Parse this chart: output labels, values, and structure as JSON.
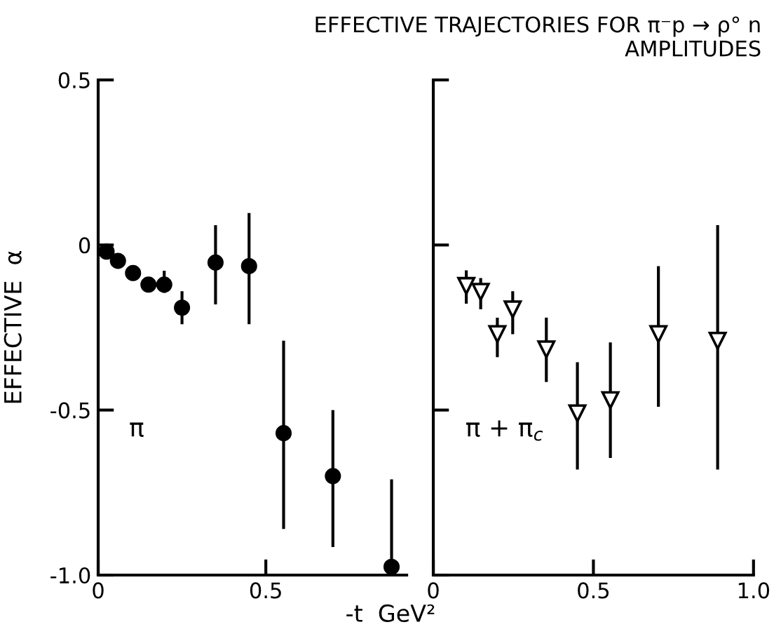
{
  "chart_data": [
    {
      "type": "scatter",
      "title": "EFFECTIVE TRAJECTORIES FOR π⁻p → ρ° n\nAMPLITUDES",
      "xlabel": "-t  GeV²",
      "ylabel": "EFFECTIVE  α",
      "annotations": [
        "π"
      ],
      "x": [
        0.025,
        0.059,
        0.104,
        0.15,
        0.197,
        0.25,
        0.35,
        0.45,
        0.553,
        0.7,
        0.875
      ],
      "series": [
        {
          "color": "#000000",
          "marker": "circle",
          "values": [
            -0.02,
            -0.048,
            -0.085,
            -0.12,
            -0.12,
            -0.19,
            -0.053,
            -0.064,
            -0.57,
            -0.7,
            -0.975
          ],
          "errors": [
            null,
            null,
            null,
            null,
            [
              -0.145,
              -0.078
            ],
            [
              -0.24,
              -0.14
            ],
            [
              -0.18,
              0.06
            ],
            [
              -0.24,
              0.097
            ],
            [
              -0.86,
              -0.29
            ],
            [
              -0.915,
              -0.5
            ],
            [
              -1.0,
              -0.71
            ]
          ]
        }
      ],
      "xlim": [
        0,
        0.92
      ],
      "ylim": [
        -1.0,
        0.5
      ],
      "xticks": [
        0,
        0.5
      ],
      "yticks": [
        0.5,
        0,
        -0.5,
        {
          "value": -1.0,
          "label": "-1.0"
        }
      ],
      "grid": false,
      "legend": false
    },
    {
      "type": "scatter",
      "annotations": [
        "π + π$_{c}$"
      ],
      "x": [
        0.103,
        0.148,
        0.2,
        0.248,
        0.353,
        0.45,
        0.553,
        0.703,
        0.888
      ],
      "series": [
        {
          "color": "#000000",
          "marker": "triangle",
          "values": [
            -0.124,
            -0.142,
            -0.27,
            -0.195,
            -0.316,
            -0.51,
            -0.47,
            -0.27,
            -0.29
          ],
          "errors": [
            [
              -0.178,
              -0.077
            ],
            [
              -0.195,
              -0.1
            ],
            [
              -0.34,
              -0.22
            ],
            [
              -0.27,
              -0.14
            ],
            [
              -0.415,
              -0.22
            ],
            [
              -0.68,
              -0.355
            ],
            [
              -0.645,
              -0.295
            ],
            [
              -0.49,
              -0.064
            ],
            [
              -0.68,
              0.06
            ]
          ]
        }
      ],
      "xlim": [
        0,
        1.0
      ],
      "ylim": [
        -1.0,
        0.5
      ],
      "xticks": [
        0,
        0.5,
        {
          "value": 1.0,
          "label": "1.0"
        }
      ],
      "yticks": [
        0.5,
        0,
        -0.5,
        -1.0
      ],
      "tick_labels": "x",
      "grid": false,
      "legend": false
    }
  ]
}
